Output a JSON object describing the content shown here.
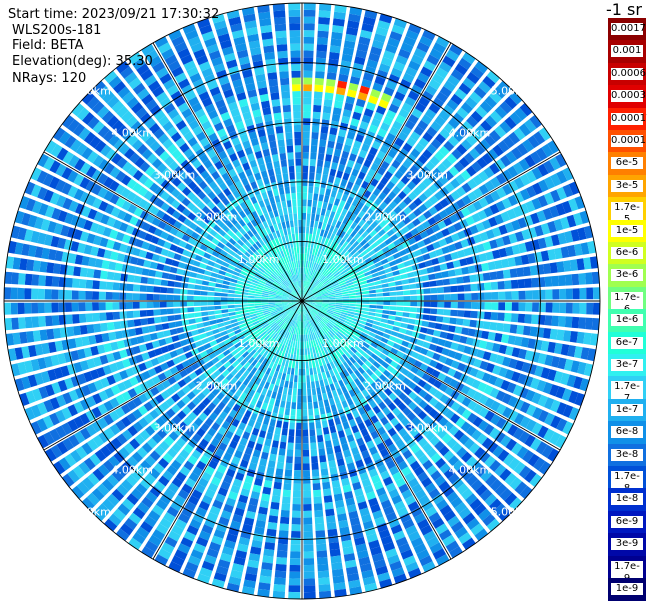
{
  "header": {
    "start_time": "Start time: 2023/09/21 17:30:32",
    "instrument": "WLS200s-181",
    "field": "Field: BETA",
    "elevation": "Elevation(deg): 35.30",
    "nrays": "NRays: 120"
  },
  "colorbar": {
    "title": "-1 sr",
    "levels": [
      {
        "label": "0.0017",
        "color": "#8b0000"
      },
      {
        "label": "0.001",
        "color": "#a80000"
      },
      {
        "label": "0.0006",
        "color": "#c80000"
      },
      {
        "label": "0.0003",
        "color": "#e00000"
      },
      {
        "label": "0.00017",
        "color": "#ff2000"
      },
      {
        "label": "0.0001",
        "color": "#ff5000"
      },
      {
        "label": "6e-5",
        "color": "#ff8000"
      },
      {
        "label": "3e-5",
        "color": "#ffa500"
      },
      {
        "label": "1.7e-5",
        "color": "#ffd000"
      },
      {
        "label": "1e-5",
        "color": "#ffff00"
      },
      {
        "label": "6e-6",
        "color": "#d0ff20"
      },
      {
        "label": "3e-6",
        "color": "#a0ff50"
      },
      {
        "label": "1.7e-6",
        "color": "#70ff80"
      },
      {
        "label": "1e-6",
        "color": "#40ffb0"
      },
      {
        "label": "6e-7",
        "color": "#20ffd8"
      },
      {
        "label": "3e-7",
        "color": "#30f0f0"
      },
      {
        "label": "1.7e-7",
        "color": "#30d0f5"
      },
      {
        "label": "1e-7",
        "color": "#20b0f0"
      },
      {
        "label": "6e-8",
        "color": "#1090e8"
      },
      {
        "label": "3e-8",
        "color": "#1070e0"
      },
      {
        "label": "1.7e-8",
        "color": "#0050d8"
      },
      {
        "label": "1e-8",
        "color": "#0030d0"
      },
      {
        "label": "6e-9",
        "color": "#0018c0"
      },
      {
        "label": "3e-9",
        "color": "#0008a8"
      },
      {
        "label": "1.7e-9",
        "color": "#000090"
      },
      {
        "label": "1e-9",
        "color": "#000070"
      }
    ]
  },
  "range_rings": [
    {
      "range_km": 1,
      "label": "1.00km"
    },
    {
      "range_km": 2,
      "label": "2.00km"
    },
    {
      "range_km": 3,
      "label": "3.00km"
    },
    {
      "range_km": 4,
      "label": "4.00km"
    },
    {
      "range_km": 5,
      "label": "5.00km"
    }
  ],
  "max_range_km": 5.0,
  "azimuth_spokes_deg": [
    0,
    30,
    60,
    90,
    120,
    150,
    180,
    210,
    240,
    270,
    300,
    330
  ]
}
